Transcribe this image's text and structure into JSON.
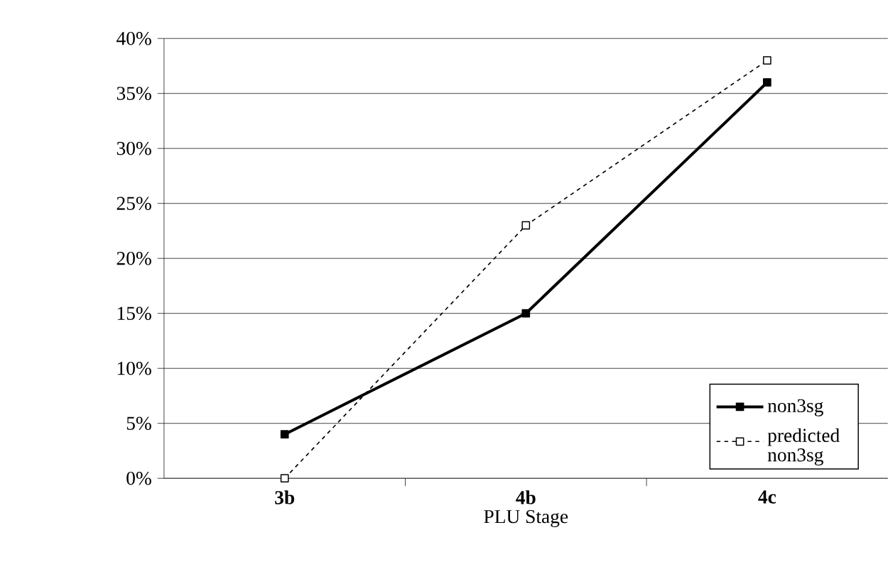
{
  "chart_data": {
    "type": "line",
    "xlabel": "PLU Stage",
    "categories": [
      "3b",
      "4b",
      "4c"
    ],
    "series": [
      {
        "name": "non3sg",
        "color": "#000000",
        "values": [
          4,
          15,
          36
        ],
        "line_style": "solid"
      },
      {
        "name": "predicted non3sg",
        "color": "#000000",
        "values": [
          0,
          23,
          38
        ],
        "line_style": "dashed"
      }
    ],
    "ylim": [
      0,
      40
    ],
    "yticks": [
      {
        "value": 0,
        "label": "0%"
      },
      {
        "value": 5,
        "label": "5%"
      },
      {
        "value": 10,
        "label": "10%"
      },
      {
        "value": 15,
        "label": "15%"
      },
      {
        "value": 20,
        "label": "20%"
      },
      {
        "value": 25,
        "label": "25%"
      },
      {
        "value": 30,
        "label": "30%"
      },
      {
        "value": 35,
        "label": "35%"
      },
      {
        "value": 40,
        "label": "40%"
      }
    ],
    "grid": "y",
    "legend": "bottom right",
    "marker": "square"
  }
}
